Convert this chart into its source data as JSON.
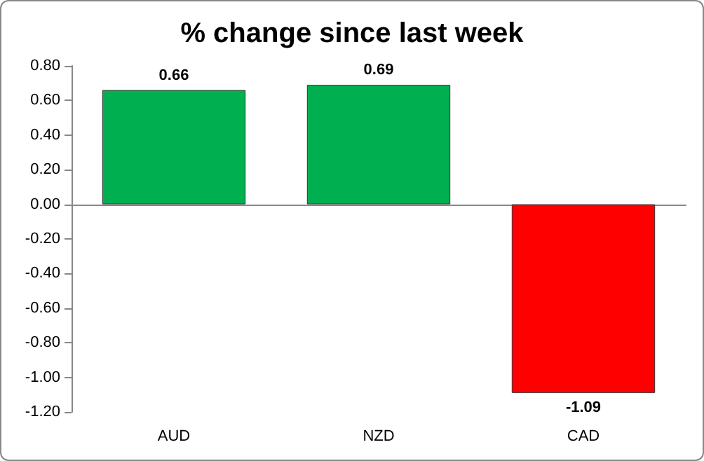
{
  "chart_data": {
    "type": "bar",
    "title": "% change since last week",
    "categories": [
      "AUD",
      "NZD",
      "CAD"
    ],
    "values": [
      0.66,
      0.69,
      -1.09
    ],
    "colors": [
      "#00b050",
      "#00b050",
      "#ff0000"
    ],
    "value_labels": [
      "0.66",
      "0.69",
      "-1.09"
    ],
    "yticks": [
      {
        "value": -1.2,
        "label": "-1.20"
      },
      {
        "value": -1.0,
        "label": "-1.00"
      },
      {
        "value": -0.8,
        "label": "-0.80"
      },
      {
        "value": -0.6,
        "label": "-0.60"
      },
      {
        "value": -0.4,
        "label": "-0.40"
      },
      {
        "value": -0.2,
        "label": "-0.20"
      },
      {
        "value": 0,
        "label": "0.00"
      },
      {
        "value": 0.2,
        "label": "0.20"
      },
      {
        "value": 0.4,
        "label": "0.40"
      },
      {
        "value": 0.6,
        "label": "0.60"
      },
      {
        "value": 0.8,
        "label": "0.80"
      }
    ],
    "ylim": [
      -1.2,
      0.8
    ]
  }
}
